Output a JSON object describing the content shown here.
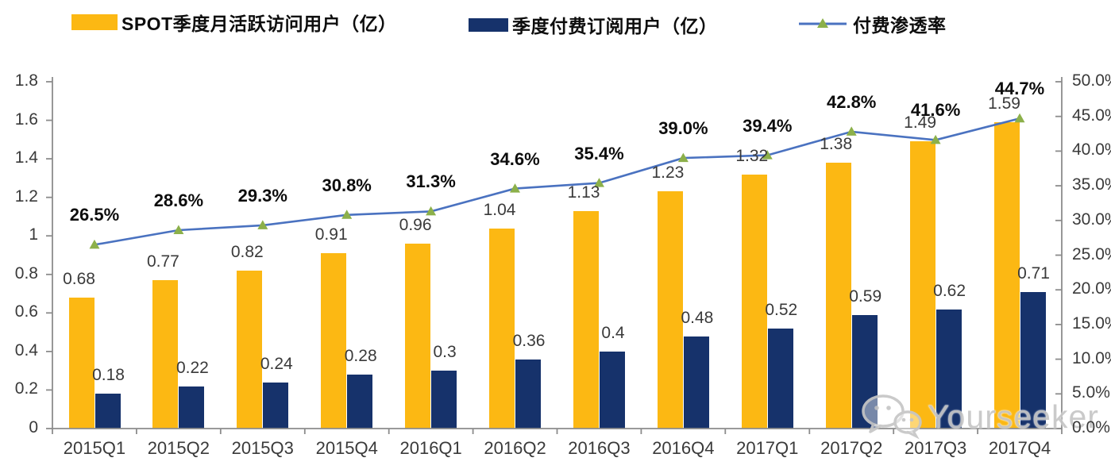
{
  "legend": [
    {
      "label": "SPOT季度月活跃访问用户（亿）",
      "type": "bar",
      "color": "#FCB813"
    },
    {
      "label": "季度付费订阅用户（亿）",
      "type": "bar",
      "color": "#16326B"
    },
    {
      "label": "付费渗透率",
      "type": "line",
      "color": "#4A72C0",
      "marker_color": "#8CB04A"
    }
  ],
  "chart_data": {
    "type": "combo-bar-line",
    "title": "",
    "categories": [
      "2015Q1",
      "2015Q2",
      "2015Q3",
      "2015Q4",
      "2016Q1",
      "2016Q2",
      "2016Q3",
      "2016Q4",
      "2017Q1",
      "2017Q2",
      "2017Q3",
      "2017Q4"
    ],
    "series": [
      {
        "name": "SPOT季度月活跃访问用户（亿）",
        "type": "bar",
        "axis": "left",
        "color": "#FCB813",
        "values": [
          0.68,
          0.77,
          0.82,
          0.91,
          0.96,
          1.04,
          1.13,
          1.23,
          1.32,
          1.38,
          1.49,
          1.59
        ],
        "labels": [
          "0.68",
          "0.77",
          "0.82",
          "0.91",
          "0.96",
          "1.04",
          "1.13",
          "1.23",
          "1.32",
          "1.38",
          "1.49",
          "1.59"
        ]
      },
      {
        "name": "季度付费订阅用户（亿）",
        "type": "bar",
        "axis": "left",
        "color": "#16326B",
        "values": [
          0.18,
          0.22,
          0.24,
          0.28,
          0.3,
          0.36,
          0.4,
          0.48,
          0.52,
          0.59,
          0.62,
          0.71
        ],
        "labels": [
          "0.18",
          "0.22",
          "0.24",
          "0.28",
          "0.3",
          "0.36",
          "0.4",
          "0.48",
          "0.52",
          "0.59",
          "0.62",
          "0.71"
        ]
      },
      {
        "name": "付费渗透率",
        "type": "line",
        "axis": "right",
        "color": "#4A72C0",
        "marker": "triangle",
        "marker_color": "#8CB04A",
        "values": [
          26.5,
          28.6,
          29.3,
          30.8,
          31.3,
          34.6,
          35.4,
          39.0,
          39.4,
          42.8,
          41.6,
          44.7
        ],
        "labels": [
          "26.5%",
          "28.6%",
          "29.3%",
          "30.8%",
          "31.3%",
          "34.6%",
          "35.4%",
          "39.0%",
          "39.4%",
          "42.8%",
          "41.6%",
          "44.7%"
        ]
      }
    ],
    "left_axis": {
      "min": 0,
      "max": 1.8,
      "tick_values": [
        1.8,
        1.6,
        1.4,
        1.2,
        1.0,
        0.8,
        0.6,
        0.4,
        0.2,
        0
      ],
      "tick_labels": [
        "1.8",
        "1.6",
        "1.4",
        "1.2",
        "1",
        "0.8",
        "0.6",
        "0.4",
        "0.2",
        "0"
      ]
    },
    "right_axis": {
      "min": 0,
      "max": 50,
      "tick_values": [
        50,
        45,
        40,
        35,
        30,
        25,
        20,
        15,
        10,
        5,
        0
      ],
      "tick_labels": [
        "50.0%",
        "45.0%",
        "40.0%",
        "35.0%",
        "30.0%",
        "25.0%",
        "20.0%",
        "15.0%",
        "10.0%",
        "5.0%",
        "0.0%"
      ]
    },
    "grid": false,
    "legend_position": "top"
  },
  "watermark": {
    "text": "Yourseeker",
    "icon": "wechat-icon"
  }
}
